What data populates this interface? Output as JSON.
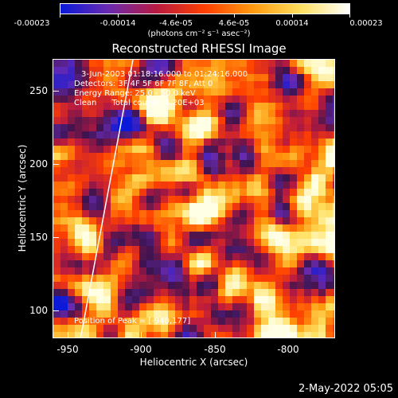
{
  "colorbar": {
    "ticks": [
      "-0.00023",
      "-0.00014",
      "-4.6e-05",
      "4.6e-05",
      "0.00014",
      "0.00023"
    ],
    "units": "(photons cm⁻² s⁻¹ asec⁻²)",
    "colors": [
      "#0a1ad8",
      "#6a2ab0",
      "#b81a40",
      "#ff4000",
      "#ff9a10",
      "#ffe060",
      "#ffffff"
    ]
  },
  "title": "Reconstructed RHESSI Image",
  "info": {
    "time_range": "3-Jun-2003 01:18:16.000 to 01:24:16.000",
    "detectors": "Detectors: 3F 4F 5F 6F 7F 8F, Att 0",
    "energy": "Energy Range: 25.0 - 50.0 keV",
    "clean": "Clean      Total counts: 4.20E+03",
    "peak": "Position of Peak = [-940,177]"
  },
  "axes": {
    "xlabel": "Heliocentric X (arcsec)",
    "ylabel": "Heliocentric Y (arcsec)",
    "xticks": [
      "-950",
      "-900",
      "-850",
      "-800"
    ],
    "yticks": [
      "250",
      "200",
      "150",
      "100"
    ]
  },
  "datestamp": "2-May-2022 05:05"
}
